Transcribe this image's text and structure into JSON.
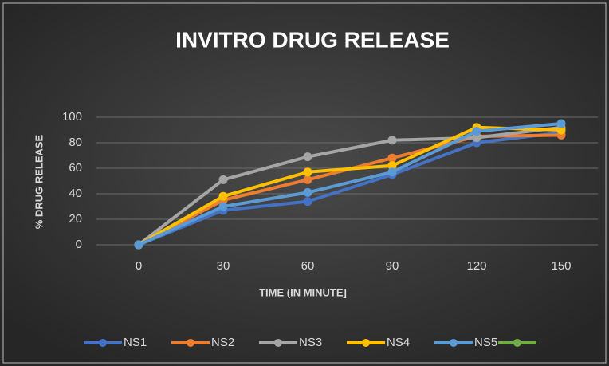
{
  "chart_data": {
    "type": "line",
    "title": "INVITRO DRUG RELEASE",
    "x_label": "TIME (IN MINUTE]",
    "y_label": "% DRUG RELEASE",
    "categories": [
      "0",
      "30",
      "60",
      "90",
      "120",
      "150"
    ],
    "series": [
      {
        "name": "NS1",
        "color": "#4472c4",
        "values": [
          0,
          27,
          34,
          55,
          80,
          88
        ]
      },
      {
        "name": "NS2",
        "color": "#ed7d31",
        "values": [
          0,
          35,
          51,
          68,
          85,
          86
        ]
      },
      {
        "name": "NS3",
        "color": "#a5a5a5",
        "values": [
          0,
          51,
          69,
          82,
          84,
          92
        ]
      },
      {
        "name": "NS4",
        "color": "#ffc000",
        "values": [
          0,
          38,
          57,
          62,
          92,
          90
        ]
      },
      {
        "name": "NS5",
        "color": "#5b9bd5",
        "values": [
          0,
          30,
          41,
          57,
          89,
          95
        ]
      },
      {
        "name": null,
        "color": "#70ad47",
        "values": [
          null,
          null,
          null,
          null,
          null,
          null
        ]
      }
    ],
    "ylim": [
      0,
      100
    ],
    "yticks": [
      0,
      20,
      40,
      60,
      80,
      100
    ],
    "grid": true,
    "legend": "bottom"
  }
}
